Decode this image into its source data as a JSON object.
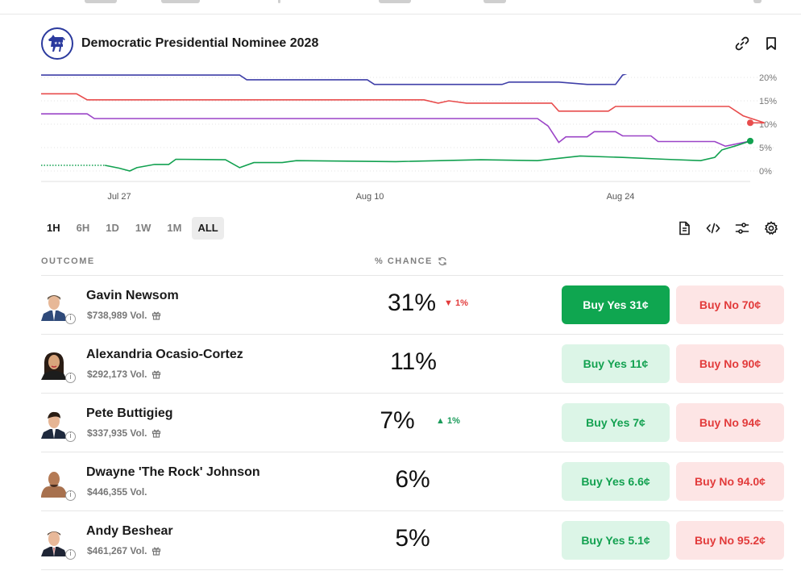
{
  "market": {
    "title": "Democratic Presidential Nominee 2028"
  },
  "icons": {
    "logo": "donkey-logo-icon",
    "link": "link-icon",
    "bookmark": "bookmark-icon"
  },
  "colors": {
    "blue": "#3f3fa8",
    "red": "#e84c4c",
    "purple": "#9b44c7",
    "green": "#12a150"
  },
  "timeframes": [
    "1H",
    "6H",
    "1D",
    "1W",
    "1M",
    "ALL"
  ],
  "table": {
    "outcome_header": "OUTCOME",
    "chance_header": "% CHANCE"
  },
  "outcomes": [
    {
      "name": "Gavin Newsom",
      "volume": "$738,989 Vol.",
      "chance": "31%",
      "delta": "1%",
      "delta_dir": "down",
      "buy_yes": "Buy Yes 31¢",
      "buy_no": "Buy No 70¢",
      "gift": true
    },
    {
      "name": "Alexandria Ocasio-Cortez",
      "volume": "$292,173 Vol.",
      "chance": "11%",
      "delta": "",
      "delta_dir": "",
      "buy_yes": "Buy Yes 11¢",
      "buy_no": "Buy No 90¢",
      "gift": true
    },
    {
      "name": "Pete Buttigieg",
      "volume": "$337,935 Vol.",
      "chance": "7%",
      "delta": "1%",
      "delta_dir": "up",
      "buy_yes": "Buy Yes 7¢",
      "buy_no": "Buy No 94¢",
      "gift": true
    },
    {
      "name": "Dwayne 'The Rock' Johnson",
      "volume": "$446,355 Vol.",
      "chance": "6%",
      "delta": "",
      "delta_dir": "",
      "buy_yes": "Buy Yes 6.6¢",
      "buy_no": "Buy No 94.0¢",
      "gift": false
    },
    {
      "name": "Andy Beshear",
      "volume": "$461,267 Vol.",
      "chance": "5%",
      "delta": "",
      "delta_dir": "",
      "buy_yes": "Buy Yes 5.1¢",
      "buy_no": "Buy No 95.2¢",
      "gift": true
    }
  ],
  "chart_data": {
    "type": "line",
    "x_ticks": [
      "Jul 27",
      "Aug 10",
      "Aug 24"
    ],
    "y_ticks": [
      "0%",
      "5%",
      "10%",
      "15%",
      "20%"
    ],
    "ylim": [
      0,
      21
    ],
    "grid": true,
    "series": [
      {
        "color": "#3f3fa8",
        "points": [
          [
            0,
            20.5
          ],
          [
            0.28,
            20.5
          ],
          [
            0.29,
            19.5
          ],
          [
            0.46,
            19.5
          ],
          [
            0.47,
            18.5
          ],
          [
            0.65,
            18.5
          ],
          [
            0.66,
            19
          ],
          [
            0.73,
            19
          ],
          [
            0.77,
            18.5
          ],
          [
            0.81,
            18.5
          ],
          [
            0.82,
            20.5
          ],
          [
            0.83,
            21
          ]
        ]
      },
      {
        "color": "#e84c4c",
        "points": [
          [
            0,
            16.5
          ],
          [
            0.05,
            16.5
          ],
          [
            0.065,
            15.2
          ],
          [
            0.54,
            15.2
          ],
          [
            0.56,
            14.5
          ],
          [
            0.575,
            15
          ],
          [
            0.6,
            14.5
          ],
          [
            0.72,
            14.5
          ],
          [
            0.73,
            12.8
          ],
          [
            0.8,
            12.8
          ],
          [
            0.81,
            13.8
          ],
          [
            0.97,
            13.8
          ],
          [
            0.99,
            11.8
          ],
          [
            1.02,
            10.3
          ],
          [
            1.0,
            10.3
          ]
        ]
      },
      {
        "color": "#9b44c7",
        "points": [
          [
            0,
            12.2
          ],
          [
            0.065,
            12.2
          ],
          [
            0.075,
            11.2
          ],
          [
            0.7,
            11.2
          ],
          [
            0.715,
            9.6
          ],
          [
            0.73,
            6.1
          ],
          [
            0.74,
            7.3
          ],
          [
            0.77,
            7.3
          ],
          [
            0.78,
            8.4
          ],
          [
            0.81,
            8.4
          ],
          [
            0.82,
            7.5
          ],
          [
            0.86,
            7.5
          ],
          [
            0.87,
            6.3
          ],
          [
            0.95,
            6.3
          ],
          [
            0.965,
            5.3
          ],
          [
            1.0,
            6.4
          ]
        ]
      },
      {
        "color": "#12a150",
        "points": [
          [
            0,
            1.2
          ],
          [
            0.09,
            1.2
          ],
          [
            0.11,
            0.6
          ],
          [
            0.125,
            0
          ],
          [
            0.135,
            0.7
          ],
          [
            0.16,
            1.4
          ],
          [
            0.18,
            1.4
          ],
          [
            0.19,
            2.5
          ],
          [
            0.26,
            2.4
          ],
          [
            0.28,
            0.7
          ],
          [
            0.3,
            1.8
          ],
          [
            0.34,
            1.8
          ],
          [
            0.36,
            2.2
          ],
          [
            0.5,
            2.0
          ],
          [
            0.62,
            2.4
          ],
          [
            0.7,
            2.2
          ],
          [
            0.76,
            3.2
          ],
          [
            0.82,
            2.9
          ],
          [
            0.88,
            2.5
          ],
          [
            0.93,
            2.2
          ],
          [
            0.95,
            2.9
          ],
          [
            0.96,
            4.5
          ],
          [
            0.98,
            5.4
          ],
          [
            1.0,
            6.4
          ]
        ]
      }
    ]
  }
}
